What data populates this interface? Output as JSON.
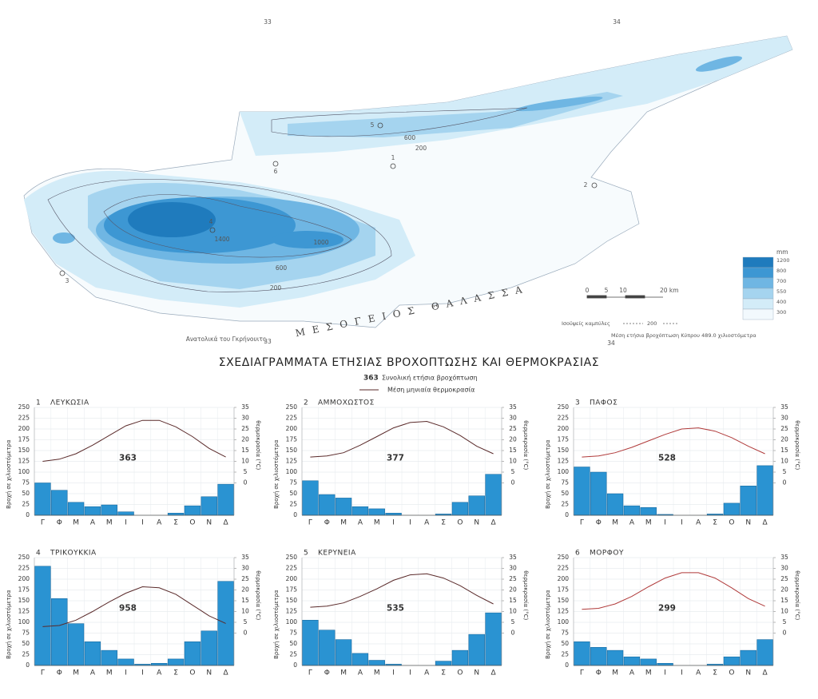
{
  "map": {
    "lon_labels": [
      33,
      34
    ],
    "greenwich_note": "Ανατολικά του Γκρήνουιτς",
    "sea_label": "ΜΕΣΟΓΕΙΟΣ ΘΑΛΑΣΣΑ",
    "scale_labels": [
      "0",
      "5",
      "10",
      "20 km"
    ],
    "contour_legend": {
      "label": "Ισοϋψείς καμπύλες",
      "value": 200
    },
    "mean_note": "Μέση ετήσια βροχόπτωση Κύπρου 489.0 χιλιοστόμετρα",
    "legend": {
      "unit": "mm",
      "classes": [
        {
          "label": 1200,
          "color": "#1f7bbd"
        },
        {
          "label": 800,
          "color": "#3d97d3"
        },
        {
          "label": 700,
          "color": "#6fb6e3"
        },
        {
          "label": 550,
          "color": "#a5d4ef"
        },
        {
          "label": 400,
          "color": "#d3ecf8"
        },
        {
          "label": 300,
          "color": "#f2f9fd"
        }
      ]
    },
    "stations": [
      "1",
      "2",
      "3",
      "4",
      "5",
      "6"
    ],
    "contour_labels": [
      "600",
      "200",
      "1400",
      "1000",
      "600",
      "200"
    ]
  },
  "header": {
    "title": "ΣΧΕΔΙΑΓΡΑΜΜΑΤΑ ΕΤΗΣΙΑΣ ΒΡΟΧΟΠΤΩΣΗΣ ΚΑΙ ΘΕΡΜΟΚΡΑΣΙΑΣ",
    "legend_number": 363,
    "legend_bar_label": "Συνολική ετήσια βροχόπτωση",
    "legend_line_label": "Μέση μηνιαία θερμοκρασία"
  },
  "chart_data": [
    {
      "type": "climate",
      "number": 1,
      "title": "ΛΕΥΚΩΣΙΑ",
      "total": 363,
      "categories": [
        "Γ",
        "Φ",
        "Μ",
        "Α",
        "Μ",
        "Ι",
        "Ι",
        "Α",
        "Σ",
        "Ο",
        "Ν",
        "Δ"
      ],
      "series": [
        {
          "color": "#2a93d2",
          "values": [
            75,
            58,
            30,
            20,
            24,
            8,
            0,
            0,
            5,
            22,
            43,
            72
          ]
        },
        {
          "color": "#5a2a2a",
          "axis": "y2",
          "values": [
            10,
            11,
            13.5,
            17.5,
            22,
            26.5,
            29,
            29,
            26,
            21.5,
            16,
            12
          ]
        }
      ],
      "ylabel": "Βροχή σε χιλιοστόμετρα",
      "y2label": "θερμοκρασία (°C)",
      "ylim": [
        0,
        250
      ],
      "yticks": [
        0,
        25,
        50,
        75,
        100,
        125,
        150,
        175,
        200,
        225,
        250
      ],
      "y2lim": [
        -15,
        35
      ],
      "y2ticks": [
        0,
        5,
        10,
        15,
        20,
        25,
        30,
        35
      ],
      "grid": true
    },
    {
      "type": "climate",
      "number": 2,
      "title": "ΑΜΜΟΧΩΣΤΟΣ",
      "total": 377,
      "categories": [
        "Γ",
        "Φ",
        "Μ",
        "Α",
        "Μ",
        "Ι",
        "Ι",
        "Α",
        "Σ",
        "Ο",
        "Ν",
        "Δ"
      ],
      "series": [
        {
          "color": "#2a93d2",
          "values": [
            80,
            48,
            40,
            20,
            15,
            5,
            0,
            0,
            3,
            30,
            45,
            95
          ]
        },
        {
          "color": "#5a2a2a",
          "axis": "y2",
          "values": [
            12,
            12.5,
            14,
            17.5,
            21.5,
            25.5,
            28,
            28.5,
            26,
            22,
            17,
            13.5
          ]
        }
      ],
      "ylabel": "Βροχή σε χιλιοστόμετρα",
      "y2label": "θερμοκρασία (°C)",
      "ylim": [
        0,
        250
      ],
      "yticks": [
        0,
        25,
        50,
        75,
        100,
        125,
        150,
        175,
        200,
        225,
        250
      ],
      "y2lim": [
        -15,
        35
      ],
      "y2ticks": [
        0,
        5,
        10,
        15,
        20,
        25,
        30,
        35
      ],
      "grid": true
    },
    {
      "type": "climate",
      "number": 3,
      "title": "ΠΑΦΟΣ",
      "total": 528,
      "categories": [
        "Γ",
        "Φ",
        "Μ",
        "Α",
        "Μ",
        "Ι",
        "Ι",
        "Α",
        "Σ",
        "Ο",
        "Ν",
        "Δ"
      ],
      "series": [
        {
          "color": "#2a93d2",
          "values": [
            112,
            100,
            50,
            22,
            18,
            2,
            0,
            0,
            3,
            28,
            68,
            115
          ]
        },
        {
          "color": "#b03a3a",
          "axis": "y2",
          "values": [
            12,
            12.5,
            14,
            16.5,
            19.5,
            22.5,
            25,
            25.5,
            24,
            21,
            17,
            13.5
          ]
        }
      ],
      "ylabel": "Βροχή σε χιλιοστόμετρα",
      "y2label": "θερμοκρασία (°C)",
      "ylim": [
        0,
        250
      ],
      "yticks": [
        0,
        25,
        50,
        75,
        100,
        125,
        150,
        175,
        200,
        225,
        250
      ],
      "y2lim": [
        -15,
        35
      ],
      "y2ticks": [
        0,
        5,
        10,
        15,
        20,
        25,
        30,
        35
      ],
      "grid": true
    },
    {
      "type": "climate",
      "number": 4,
      "title": "ΤΡΙΚΟΥΚΚΙΑ",
      "total": 958,
      "categories": [
        "Γ",
        "Φ",
        "Μ",
        "Α",
        "Μ",
        "Ι",
        "Ι",
        "Α",
        "Σ",
        "Ο",
        "Ν",
        "Δ"
      ],
      "series": [
        {
          "color": "#2a93d2",
          "values": [
            230,
            155,
            97,
            55,
            35,
            15,
            3,
            5,
            15,
            55,
            80,
            195
          ]
        },
        {
          "color": "#5a2a2a",
          "axis": "y2",
          "values": [
            3,
            3.5,
            6,
            10,
            14.5,
            18.5,
            21.5,
            21,
            18,
            13,
            8,
            4.5
          ]
        }
      ],
      "ylabel": "Βροχή σε χιλιοστόμετρα",
      "y2label": "θερμοκρασία (°C)",
      "ylim": [
        0,
        250
      ],
      "yticks": [
        0,
        25,
        50,
        75,
        100,
        125,
        150,
        175,
        200,
        225,
        250
      ],
      "y2lim": [
        -15,
        35
      ],
      "y2ticks": [
        0,
        5,
        10,
        15,
        20,
        25,
        30,
        35
      ],
      "grid": true
    },
    {
      "type": "climate",
      "number": 5,
      "title": "ΚΕΡΥΝΕΙΑ",
      "total": 535,
      "categories": [
        "Γ",
        "Φ",
        "Μ",
        "Α",
        "Μ",
        "Ι",
        "Ι",
        "Α",
        "Σ",
        "Ο",
        "Ν",
        "Δ"
      ],
      "series": [
        {
          "color": "#2a93d2",
          "values": [
            105,
            82,
            60,
            28,
            12,
            3,
            0,
            0,
            10,
            35,
            72,
            122
          ]
        },
        {
          "color": "#5a2a2a",
          "axis": "y2",
          "values": [
            12,
            12.5,
            14,
            17,
            20.5,
            24.5,
            27,
            27.5,
            25.5,
            22,
            17.5,
            13.5
          ]
        }
      ],
      "ylabel": "Βροχή σε χιλιοστόμετρα",
      "y2label": "θερμοκρασία (°C)",
      "ylim": [
        0,
        250
      ],
      "yticks": [
        0,
        25,
        50,
        75,
        100,
        125,
        150,
        175,
        200,
        225,
        250
      ],
      "y2lim": [
        -15,
        35
      ],
      "y2ticks": [
        0,
        5,
        10,
        15,
        20,
        25,
        30,
        35
      ],
      "grid": true
    },
    {
      "type": "climate",
      "number": 6,
      "title": "ΜΟΡΦΟΥ",
      "total": 299,
      "categories": [
        "Γ",
        "Φ",
        "Μ",
        "Α",
        "Μ",
        "Ι",
        "Ι",
        "Α",
        "Σ",
        "Ο",
        "Ν",
        "Δ"
      ],
      "series": [
        {
          "color": "#2a93d2",
          "values": [
            55,
            42,
            35,
            20,
            15,
            5,
            0,
            0,
            3,
            20,
            35,
            60
          ]
        },
        {
          "color": "#b03a3a",
          "axis": "y2",
          "values": [
            11,
            11.5,
            13.5,
            17,
            21.5,
            25.5,
            28,
            28,
            25.5,
            21,
            16,
            12.5
          ]
        }
      ],
      "ylabel": "Βροχή σε χιλιοστόμετρα",
      "y2label": "θερμοκρασία (°C)",
      "ylim": [
        0,
        250
      ],
      "yticks": [
        0,
        25,
        50,
        75,
        100,
        125,
        150,
        175,
        200,
        225,
        250
      ],
      "y2lim": [
        -15,
        35
      ],
      "y2ticks": [
        0,
        5,
        10,
        15,
        20,
        25,
        30,
        35
      ],
      "grid": true
    }
  ]
}
